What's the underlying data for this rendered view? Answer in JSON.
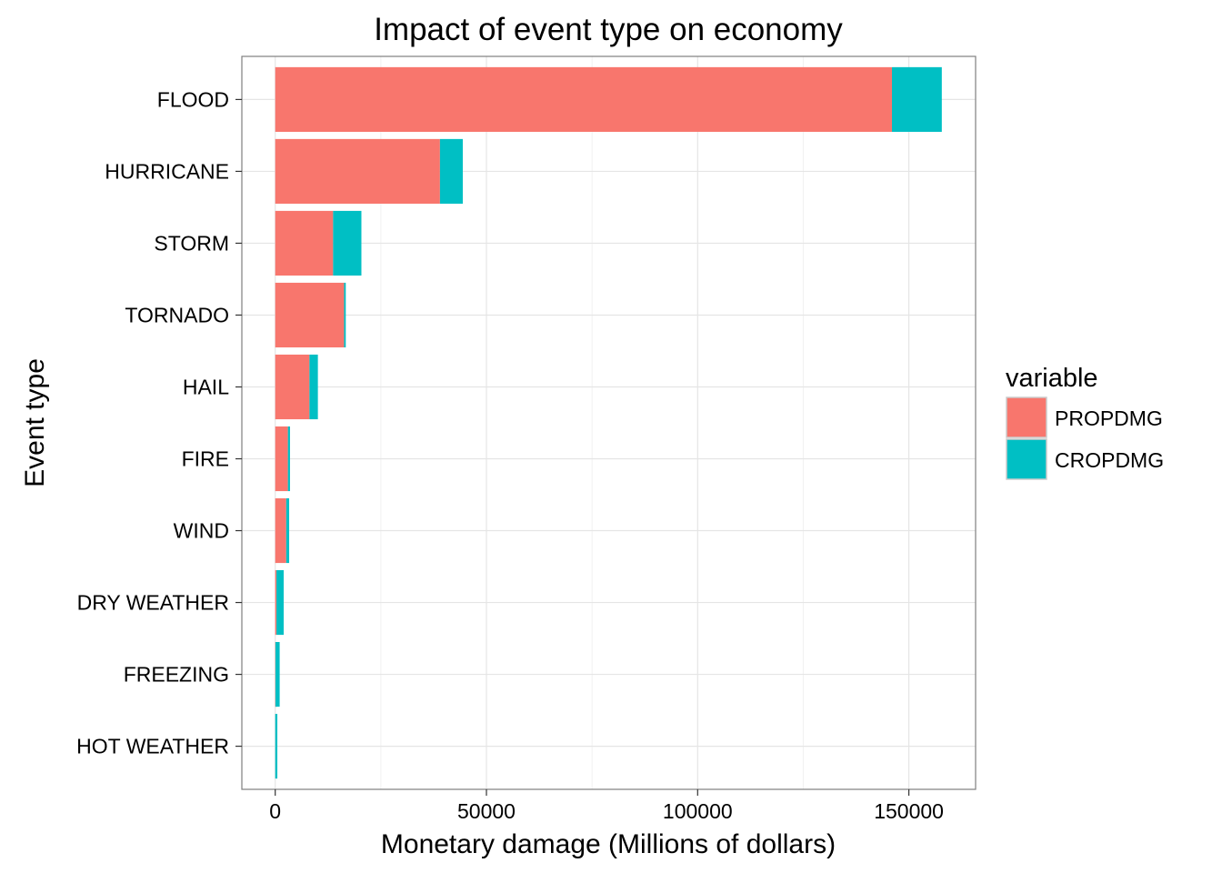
{
  "chart_data": {
    "type": "bar",
    "orientation": "horizontal",
    "stacked": true,
    "title": "Impact of event type on economy",
    "xlabel": "Monetary damage (Millions of dollars)",
    "ylabel": "Event type",
    "categories": [
      "FLOOD",
      "HURRICANE",
      "STORM",
      "TORNADO",
      "HAIL",
      "FIRE",
      "WIND",
      "DRY WEATHER",
      "FREEZING",
      "HOT WEATHER"
    ],
    "series": [
      {
        "name": "PROPDMG",
        "color": "#F8766D",
        "values": [
          146000,
          39000,
          13700,
          16300,
          8100,
          3000,
          2600,
          300,
          50,
          0
        ]
      },
      {
        "name": "CROPDMG",
        "color": "#00BFC4",
        "values": [
          11800,
          5400,
          6700,
          400,
          2000,
          500,
          700,
          1700,
          1000,
          500
        ]
      }
    ],
    "xlim": [
      -7900,
      165800
    ],
    "xticks": [
      0,
      50000,
      100000,
      150000
    ],
    "xtick_labels": [
      "0",
      "50000",
      "100000",
      "150000"
    ],
    "grid": true,
    "legend": {
      "title": "variable",
      "position": "right"
    }
  }
}
